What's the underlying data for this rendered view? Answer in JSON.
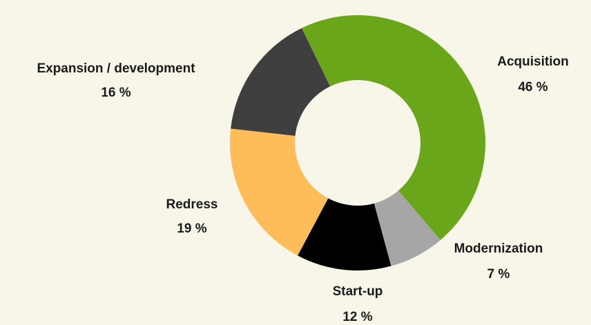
{
  "chart_data": {
    "type": "donut",
    "categories": [
      "Acquisition",
      "Modernization",
      "Start-up",
      "Redress",
      "Expansion / development"
    ],
    "values": [
      46,
      7,
      12,
      19,
      16
    ],
    "value_labels": [
      "46 %",
      "7 %",
      "12 %",
      "19 %",
      "16 %"
    ],
    "colors": [
      "#6aa61a",
      "#a6a6a6",
      "#000000",
      "#ffbd5a",
      "#3f3f3f"
    ]
  }
}
